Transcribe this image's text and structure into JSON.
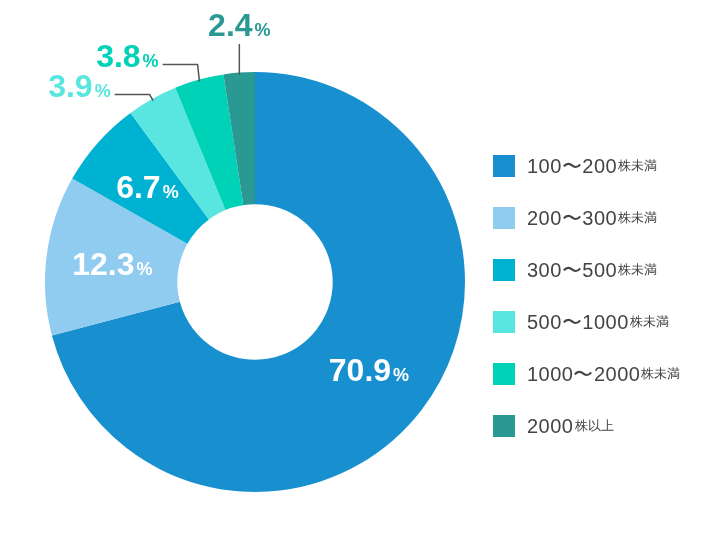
{
  "chart_data": {
    "type": "doughnut",
    "categories": [
      "100〜200株未満",
      "200〜300株未満",
      "300〜500株未満",
      "500〜1000株未満",
      "1000〜2000株未満",
      "2000株以上"
    ],
    "values": [
      70.9,
      12.3,
      6.7,
      3.9,
      3.8,
      2.4
    ],
    "value_labels": [
      "70.9%",
      "12.3%",
      "6.7%",
      "3.9%",
      "3.8%",
      "2.4%"
    ],
    "colors": [
      "#1890d0",
      "#90cbf0",
      "#00b2d2",
      "#5ae6e0",
      "#00d2b8",
      "#2a9893"
    ],
    "legend": "right",
    "data_labels": true
  }
}
